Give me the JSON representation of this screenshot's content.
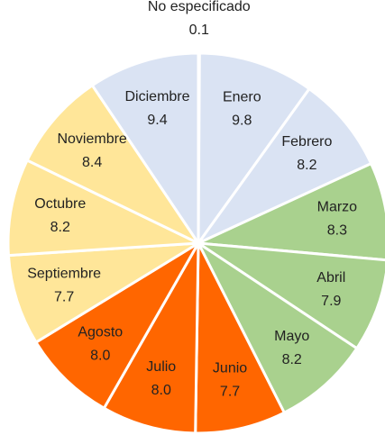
{
  "chart_data": {
    "type": "pie",
    "categories": [
      "No especificado",
      "Enero",
      "Febrero",
      "Marzo",
      "Abril",
      "Mayo",
      "Junio",
      "Julio",
      "Agosto",
      "Septiembre",
      "Octubre",
      "Noviembre",
      "Diciembre"
    ],
    "values": [
      0.1,
      9.8,
      8.2,
      8.3,
      7.9,
      8.2,
      7.7,
      8.0,
      8.0,
      7.7,
      8.2,
      8.4,
      9.4
    ],
    "value_labels": [
      "0.1",
      "9.8",
      "8.2",
      "8.3",
      "7.9",
      "8.2",
      "7.7",
      "8.0",
      "8.0",
      "7.7",
      "8.2",
      "8.4",
      "9.4"
    ],
    "colors": [
      "#dae3f3",
      "#dae3f3",
      "#dae3f3",
      "#a9d18e",
      "#a9d18e",
      "#a9d18e",
      "#ff6600",
      "#ff6600",
      "#ff6600",
      "#ffe699",
      "#ffe699",
      "#ffe699",
      "#dae3f3"
    ]
  }
}
